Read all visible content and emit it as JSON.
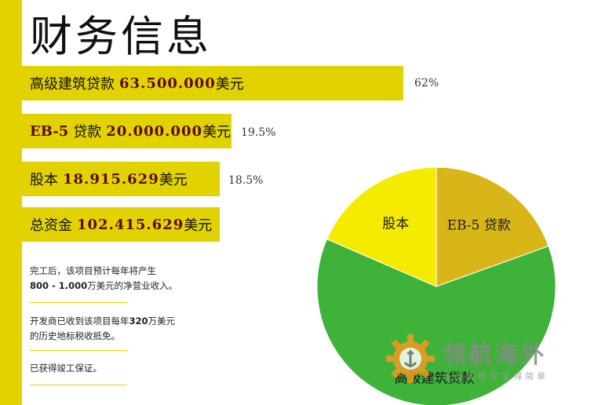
{
  "title": "财务信息",
  "bars": [
    {
      "label": "高级建筑贷款",
      "amount": "63.500.000",
      "unit": "美元",
      "pct": "62%"
    },
    {
      "label": "贷款",
      "prefix": "EB-5",
      "amount": "20.000.000",
      "unit": "美元",
      "pct": "19.5%"
    },
    {
      "label": "股本",
      "amount": "18.915.629",
      "unit": "美元",
      "pct": "18.5%"
    },
    {
      "label": "总资金",
      "amount": "102.415.629",
      "unit": "美元"
    }
  ],
  "notes": {
    "n1_line1": "完工后，该项目预计每年将产生",
    "n1_bold": "800 - 1.000",
    "n1_rest": "万美元的净营业收入。",
    "n2_line1_a": "开发商已收到该项目每年",
    "n2_bold": "320",
    "n2_line1_b": "万美元",
    "n2_line2": "的历史地标税收抵免。",
    "n3": "已获得竣工保证。"
  },
  "chart_data": {
    "type": "pie",
    "slices": [
      {
        "label": "EB-5 贷款",
        "value": 19.5,
        "color": "#d9b618"
      },
      {
        "label": "高级建筑贷款",
        "value": 62,
        "color": "#3fb23a"
      },
      {
        "label": "股本",
        "value": 18.5,
        "color": "#f5eb00"
      }
    ]
  },
  "watermark": {
    "main": "领航海外",
    "sub": "让出国移民变得简单"
  },
  "colors": {
    "accent": "#e2d300"
  }
}
